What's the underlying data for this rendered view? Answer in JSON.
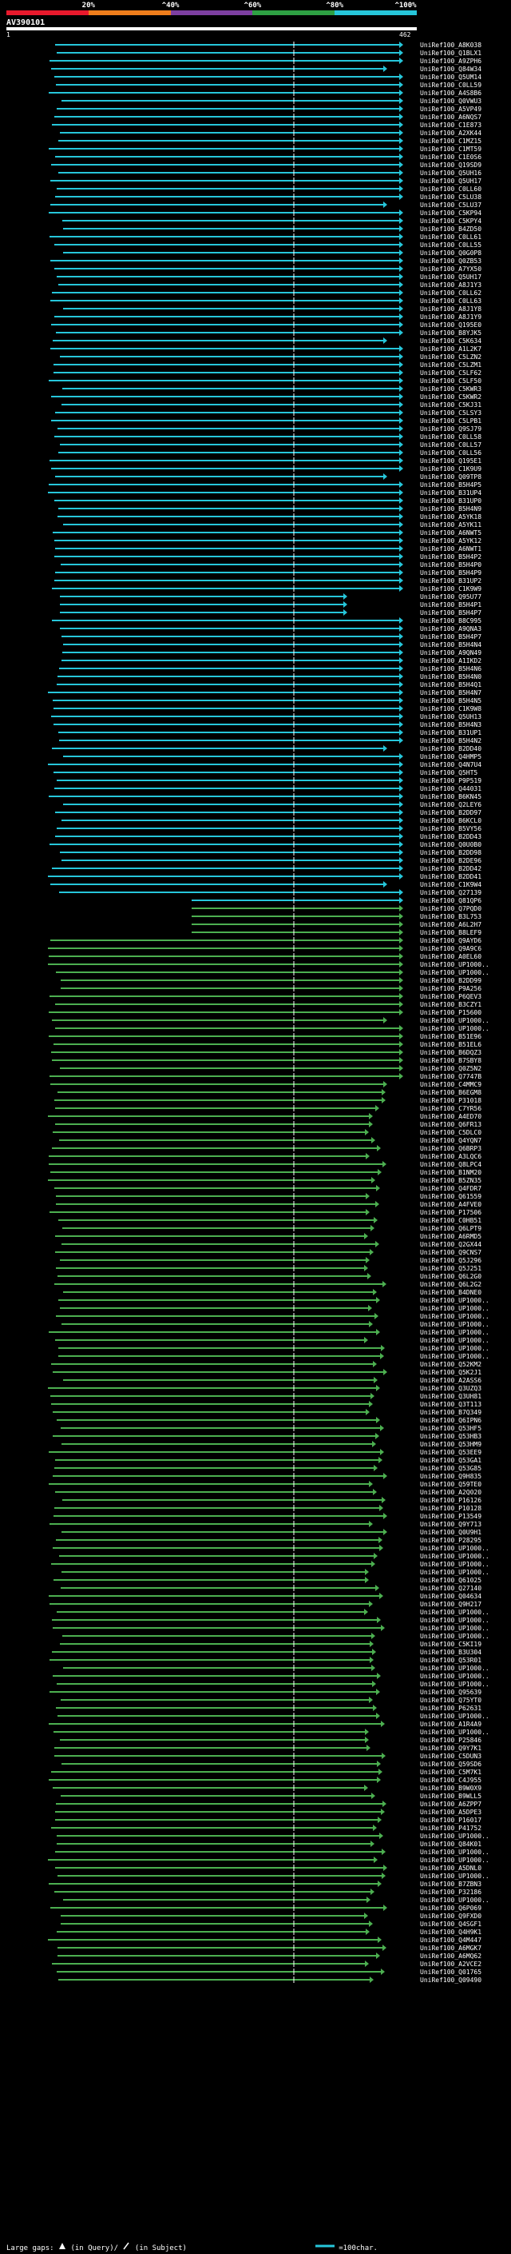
{
  "scale": {
    "ticks": [
      "20%",
      "^40%",
      "^60%",
      "^80%",
      "^100%"
    ],
    "colors": [
      "#e8192c",
      "#ef7e1c",
      "#7d3fa0",
      "#2ea043",
      "#26c6da"
    ]
  },
  "query": {
    "id": "AV390101",
    "start": "1",
    "end": "462"
  },
  "colors": {
    "cyan": "#26c6da",
    "green": "#4caf50",
    "white": "#ffffff"
  },
  "hits": [
    "UniRef100_A8K038",
    "UniRef100_Q1BLX1",
    "UniRef100_A9ZPH6",
    "UniRef100_Q84W34",
    "UniRef100_Q5UM14",
    "UniRef100_C0LL59",
    "UniRef100_A4S8B6",
    "UniRef100_Q0VWU3",
    "UniRef100_A5VP49",
    "UniRef100_A6NQS7",
    "UniRef100_C1E873",
    "UniRef100_A2XK44",
    "UniRef100_C1MZ15",
    "UniRef100_C1MT59",
    "UniRef100_C1E0S6",
    "UniRef100_Q19SD9",
    "UniRef100_Q5UH16",
    "UniRef100_Q5UH17",
    "UniRef100_C0LL60",
    "UniRef100_C5LU38",
    "UniRef100_C5LU37",
    "UniRef100_C5KP94",
    "UniRef100_C5KPY4",
    "UniRef100_B4ZD50",
    "UniRef100_C0LL61",
    "UniRef100_C0LL55",
    "UniRef100_Q0G0P8",
    "UniRef100_Q0ZB53",
    "UniRef100_A7YX50",
    "UniRef100_Q5UH17",
    "UniRef100_A8J1Y3",
    "UniRef100_C0LL62",
    "UniRef100_C0LL63",
    "UniRef100_A8J1Y8",
    "UniRef100_A8J1Y9",
    "UniRef100_Q195E0",
    "UniRef100_B8YJK5",
    "UniRef100_C5K634",
    "UniRef100_A1L2K7",
    "UniRef100_C5LZN2",
    "UniRef100_C5LZM1",
    "UniRef100_C5LF62",
    "UniRef100_C5LF50",
    "UniRef100_C5KWR3",
    "UniRef100_C5KWR2",
    "UniRef100_C5KJ31",
    "UniRef100_C5LSY3",
    "UniRef100_C5LPB1",
    "UniRef100_Q9SJ79",
    "UniRef100_C0LL58",
    "UniRef100_C0LL57",
    "UniRef100_C0LL56",
    "UniRef100_Q195E1",
    "UniRef100_C1K9U9",
    "UniRef100_Q09TP8",
    "UniRef100_B5H4P5",
    "UniRef100_B31UP4",
    "UniRef100_B31UP0",
    "UniRef100_B5H4N9",
    "UniRef100_A5YK18",
    "UniRef100_A5YK11",
    "UniRef100_A6NWT5",
    "UniRef100_A5YK12",
    "UniRef100_A6NWT1",
    "UniRef100_B5H4P2",
    "UniRef100_B5H4P0",
    "UniRef100_B5H4P9",
    "UniRef100_B31UP2",
    "UniRef100_C1K9W9",
    "UniRef100_Q95U77",
    "UniRef100_B5H4P1",
    "UniRef100_B5H4P7",
    "UniRef100_B8C995",
    "UniRef100_A9QNA3",
    "UniRef100_B5H4P7",
    "UniRef100_B5H4N4",
    "UniRef100_A9QN49",
    "UniRef100_A1IKD2",
    "UniRef100_B5H4N6",
    "UniRef100_B5H4N0",
    "UniRef100_B5H4Q1",
    "UniRef100_B5H4N7",
    "UniRef100_B5H4N5",
    "UniRef100_C1K9W8",
    "UniRef100_Q5UH13",
    "UniRef100_B5H4N3",
    "UniRef100_B31UP1",
    "UniRef100_B5H4N2",
    "UniRef100_B2DD40",
    "UniRef100_Q4HMP5",
    "UniRef100_Q4N7U4",
    "UniRef100_Q5HT5",
    "UniRef100_P9P519",
    "UniRef100_Q44031",
    "UniRef100_B6KN45",
    "UniRef100_Q2LEY6",
    "UniRef100_B2DD97",
    "UniRef100_B6KCL0",
    "UniRef100_B5VY56",
    "UniRef100_B2DD43",
    "UniRef100_Q0U0B0",
    "UniRef100_B2DD98",
    "UniRef100_B2DE96",
    "UniRef100_B2DD42",
    "UniRef100_B2DD41",
    "UniRef100_C1K9W4",
    "UniRef100_Q27139",
    "UniRef100_Q81QP6",
    "UniRef100_Q7PQD0",
    "UniRef100_B3L753",
    "UniRef100_A6L2H7",
    "UniRef100_B8LEF9",
    "UniRef100_Q9AYD6",
    "UniRef100_Q9A9C6",
    "UniRef100_A0EL60",
    "UniRef100_UP1000..",
    "UniRef100_UP1000..",
    "UniRef100_B2DD99",
    "UniRef100_P9A256",
    "UniRef100_P6QEV3",
    "UniRef100_B3CZY1",
    "UniRef100_P15600",
    "UniRef100_UP1000..",
    "UniRef100_UP1000..",
    "UniRef100_B51E96",
    "UniRef100_B51EL6",
    "UniRef100_B6DQZ3",
    "UniRef100_B7SBY8",
    "UniRef100_Q0Z5N2",
    "UniRef100_Q7747B",
    "UniRef100_C4MMC9",
    "UniRef100_B6EGM8",
    "UniRef100_P31018",
    "UniRef100_C7YR56",
    "UniRef100_A4ED70",
    "UniRef100_Q6FR13",
    "UniRef100_C5DLC0",
    "UniRef100_Q4YQN7",
    "UniRef100_Q6BRP3",
    "UniRef100_A3LQC6",
    "UniRef100_Q8LPC4",
    "UniRef100_B1NM20",
    "UniRef100_B5ZN35",
    "UniRef100_Q4FDR7",
    "UniRef100_Q61559",
    "UniRef100_A4FVE0",
    "UniRef100_P17506",
    "UniRef100_C0HB51",
    "UniRef100_Q6LPT9",
    "UniRef100_A6RMD5",
    "UniRef100_Q2GX44",
    "UniRef100_Q9CNS7",
    "UniRef100_Q5J296",
    "UniRef100_Q5J251",
    "UniRef100_Q6L2G0",
    "UniRef100_Q6L2G2",
    "UniRef100_B4DNE0",
    "UniRef100_UP1000..",
    "UniRef100_UP1000..",
    "UniRef100_UP1000..",
    "UniRef100_UP1000..",
    "UniRef100_UP1000..",
    "UniRef100_UP1000..",
    "UniRef100_UP1000..",
    "UniRef100_UP1000..",
    "UniRef100_Q52KM2",
    "UniRef100_Q5K2J1",
    "UniRef100_A2ASS6",
    "UniRef100_Q3UZQ3",
    "UniRef100_Q3UH81",
    "UniRef100_Q3T113",
    "UniRef100_B7Q349",
    "UniRef100_Q6IPN6",
    "UniRef100_Q53HF5",
    "UniRef100_Q53HB3",
    "UniRef100_Q53HM9",
    "UniRef100_Q53EE9",
    "UniRef100_Q53GA1",
    "UniRef100_Q53G85",
    "UniRef100_Q9H835",
    "UniRef100_Q59TE0",
    "UniRef100_A2Q020",
    "UniRef100_P16126",
    "UniRef100_P10128",
    "UniRef100_P13549",
    "UniRef100_Q9Y713",
    "UniRef100_Q0U9H1",
    "UniRef100_P28295",
    "UniRef100_UP1000..",
    "UniRef100_UP1000..",
    "UniRef100_UP1000..",
    "UniRef100_UP1000..",
    "UniRef100_Q61025",
    "UniRef100_Q27140",
    "UniRef100_Q04634",
    "UniRef100_Q9H217",
    "UniRef100_UP1000..",
    "UniRef100_UP1000..",
    "UniRef100_UP1000..",
    "UniRef100_UP1000..",
    "UniRef100_C5KI19",
    "UniRef100_B3U304",
    "UniRef100_Q53R01",
    "UniRef100_UP1000..",
    "UniRef100_UP1000..",
    "UniRef100_UP1000..",
    "UniRef100_Q95639",
    "UniRef100_Q75YT0",
    "UniRef100_P62631",
    "UniRef100_UP1000..",
    "UniRef100_A1R4A9",
    "UniRef100_UP1000..",
    "UniRef100_P25846",
    "UniRef100_Q9Y7K1",
    "UniRef100_C5DUN3",
    "UniRef100_Q59SD6",
    "UniRef100_C5M7K1",
    "UniRef100_C4J955",
    "UniRef100_B9W0X9",
    "UniRef100_B9WLL5",
    "UniRef100_A6ZPP7",
    "UniRef100_A5DPE3",
    "UniRef100_P16017",
    "UniRef100_P41752",
    "UniRef100_UP1000..",
    "UniRef100_Q84K01",
    "UniRef100_UP1000..",
    "UniRef100_UP1000..",
    "UniRef100_A5DNL0",
    "UniRef100_UP1000..",
    "UniRef100_B7ZBN3",
    "UniRef100_P32186",
    "UniRef100_UP1000..",
    "UniRef100_Q6P069",
    "UniRef100_Q9FXD0",
    "UniRef100_Q4SGF1",
    "UniRef100_Q4H9K1",
    "UniRef100_Q4M447",
    "UniRef100_A6MGK7",
    "UniRef100_A6MQ62",
    "UniRef100_A2VCE2",
    "UniRef100_Q01765",
    "UniRef100_Q09490"
  ],
  "legend": {
    "large_gaps": "Large gaps:",
    "in_query": "(in Query)/",
    "in_subject": "(in Subject)",
    "scale_text": "=100char."
  }
}
